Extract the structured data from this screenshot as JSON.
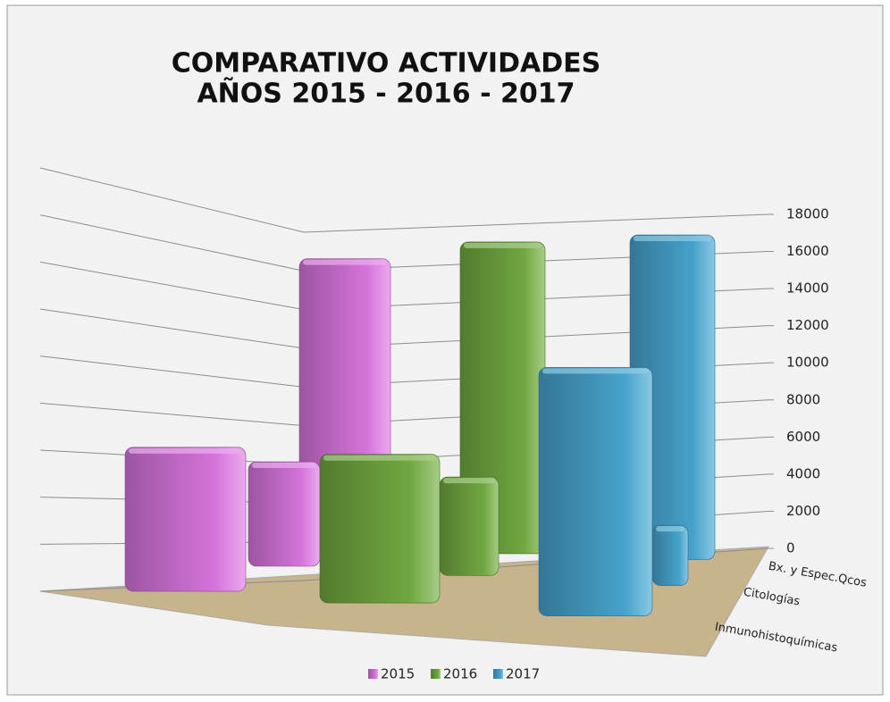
{
  "chart_data": {
    "type": "bar3d",
    "title": [
      "COMPARATIVO ACTIVIDADES",
      "AÑOS 2015 - 2016 - 2017"
    ],
    "categories": [
      "Bx. y Espec.Qcos",
      "Citologías",
      "Inmunohistoquímicas"
    ],
    "series": [
      {
        "name": "2015",
        "color": "#e07ae6",
        "values": [
          15600,
          5200,
          6200
        ]
      },
      {
        "name": "2016",
        "color": "#76b043",
        "values": [
          16800,
          4900,
          6400
        ]
      },
      {
        "name": "2017",
        "color": "#4aaad6",
        "values": [
          17500,
          3000,
          10700
        ]
      }
    ],
    "ylim": [
      0,
      18000
    ],
    "yticks": [
      0,
      2000,
      4000,
      6000,
      8000,
      10000,
      12000,
      14000,
      16000,
      18000
    ],
    "grid": true,
    "legend": "bottom"
  }
}
